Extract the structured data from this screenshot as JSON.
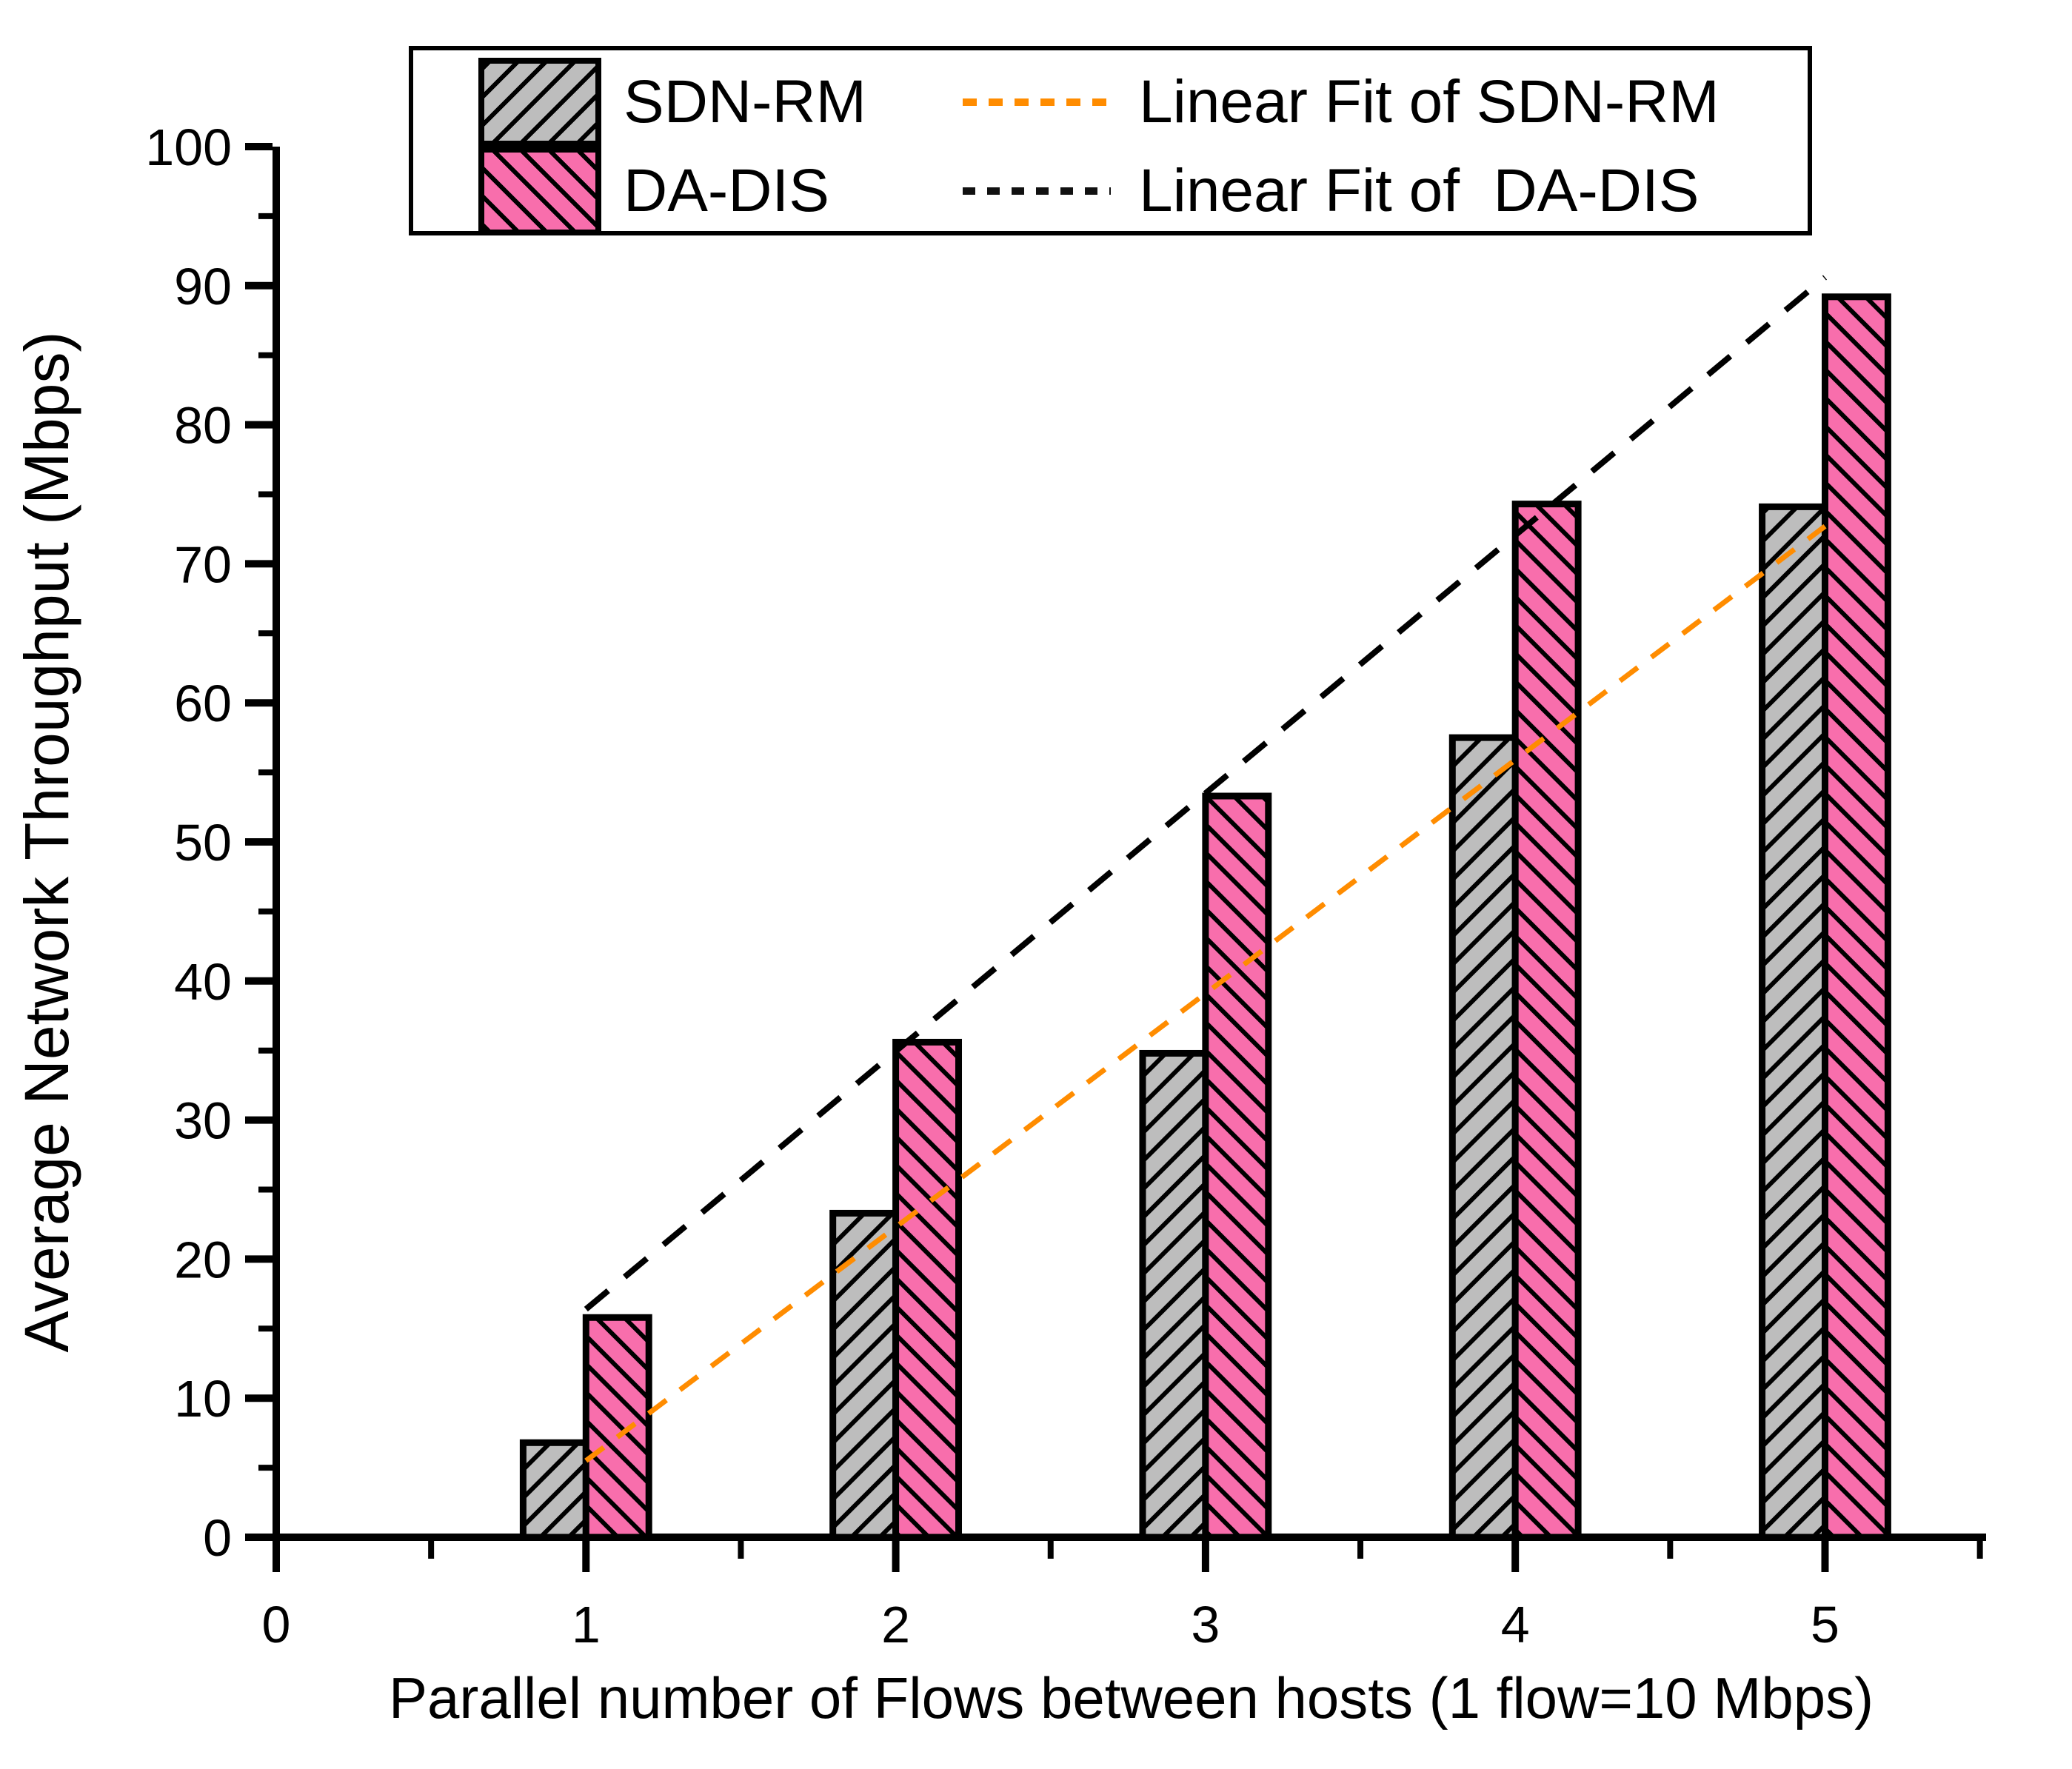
{
  "figure_colors": {
    "sdn_rm_fill": "#bdbdbd",
    "da_dis_fill": "#f86eac",
    "sdn_rm_fit_line": "#ff8c00",
    "da_dis_fit_line": "#000000",
    "axis": "#000000",
    "background": "#ffffff"
  },
  "legend": {
    "items": [
      {
        "label": "SDN-RM",
        "fit_label": "Linear Fit of SDN-RM"
      },
      {
        "label": "DA-DIS",
        "fit_label": "Linear Fit of  DA-DIS"
      }
    ]
  },
  "chart_data": {
    "type": "bar",
    "title": "",
    "xlabel": "Parallel number of Flows between hosts (1 flow=10 Mbps)",
    "ylabel": "Average Network Throughput (Mbps)",
    "categories": [
      1,
      2,
      3,
      4,
      5
    ],
    "x_tick_labels": [
      "0",
      "1",
      "2",
      "3",
      "4",
      "5"
    ],
    "series": [
      {
        "name": "SDN-RM",
        "hatch": "/",
        "color": "#bdbdbd",
        "values": [
          6.8,
          23.3,
          34.8,
          57.5,
          74.1
        ]
      },
      {
        "name": "DA-DIS",
        "hatch": "\\",
        "color": "#f86eac",
        "values": [
          15.8,
          35.6,
          53.3,
          74.3,
          89.2
        ]
      }
    ],
    "fit_lines": [
      {
        "name": "Linear Fit of SDN-RM",
        "color": "#ff8c00",
        "x1": 1,
        "y1": 5.5,
        "x2": 5,
        "y2": 72.7
      },
      {
        "name": "Linear Fit of  DA-DIS",
        "color": "#000000",
        "x1": 1,
        "y1": 16.4,
        "x2": 5,
        "y2": 90.6
      }
    ],
    "xlim": [
      0,
      5.52
    ],
    "ylim": [
      0,
      100
    ],
    "x_major_ticks": [
      0,
      1,
      2,
      3,
      4,
      5
    ],
    "x_minor_step": 0.5,
    "y_major_step": 10,
    "y_minor_step": 5,
    "grid": false,
    "legend_position": "top-center"
  }
}
